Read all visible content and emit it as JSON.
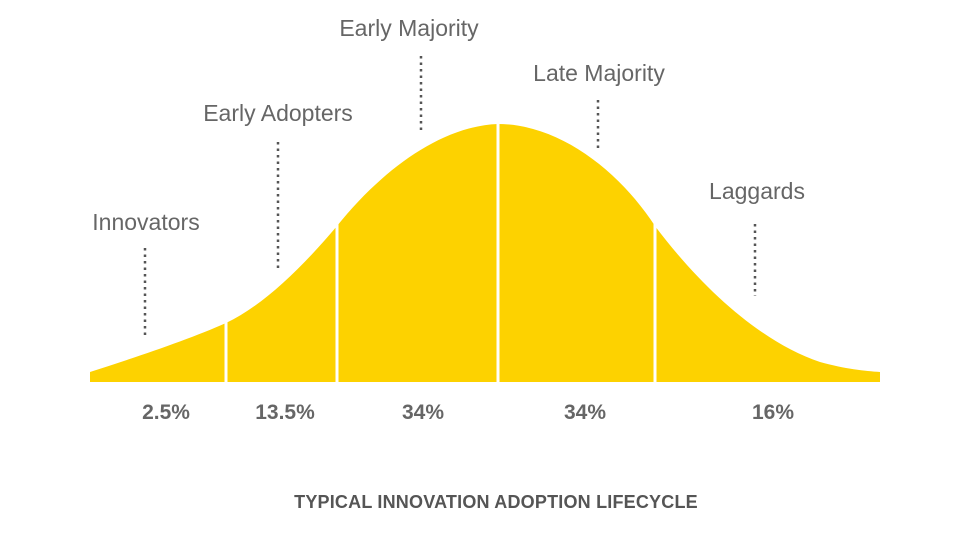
{
  "chart_data": {
    "type": "area",
    "title": "TYPICAL INNOVATION ADOPTION LIFECYCLE",
    "segments": [
      {
        "label": "Innovators",
        "share": "2.5%"
      },
      {
        "label": "Early Adopters",
        "share": "13.5%"
      },
      {
        "label": "Early Majority",
        "share": "34%"
      },
      {
        "label": "Late Majority",
        "share": "34%"
      },
      {
        "label": "Laggards",
        "share": "16%"
      }
    ]
  },
  "colors": {
    "curve_fill": "#FDD200",
    "divider": "#ffffff",
    "text": "#666666",
    "caption": "#555555",
    "leader": "#555555"
  }
}
